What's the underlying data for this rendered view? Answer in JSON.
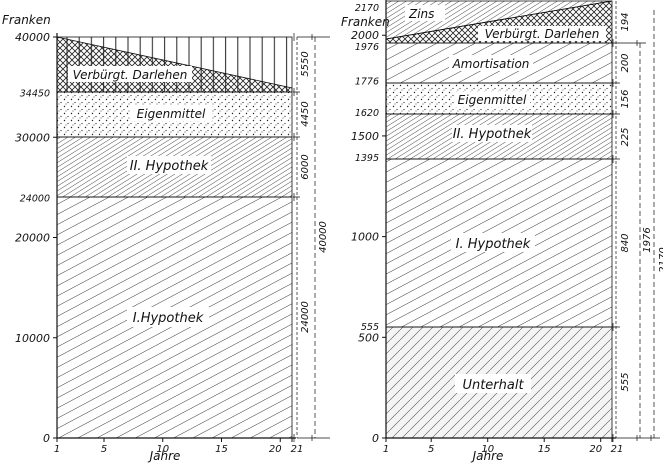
{
  "chart_data": [
    {
      "type": "area",
      "ylabel": "Franken",
      "xlabel": "Jahre",
      "ylim": [
        0,
        40000
      ],
      "xlim": [
        1,
        21
      ],
      "x_ticks": [
        "1",
        "5",
        "10",
        "15",
        "20",
        "21"
      ],
      "y_ticks": [
        "0",
        "10000",
        "20000",
        "30000",
        "40000"
      ],
      "boundary_labels": [
        "34450",
        "24000"
      ],
      "bands": [
        {
          "name": "I. Hypothek",
          "from": 0,
          "to": 24000,
          "amount": "24000"
        },
        {
          "name": "II. Hypothek",
          "from": 24000,
          "to": 30000,
          "amount": "6000"
        },
        {
          "name": "Eigenmittel",
          "from": 30000,
          "to": 34450,
          "amount": "4450"
        },
        {
          "name": "Verbürgt. Darlehen",
          "from": 34450,
          "to": 40000,
          "amount": "5550",
          "remaining": [
            [
              1,
              40000
            ],
            [
              21,
              34600
            ]
          ]
        }
      ],
      "total_label": "40000"
    },
    {
      "type": "area",
      "ylabel": "Franken",
      "xlabel": "Jahre",
      "ylim": [
        0,
        2170
      ],
      "xlim": [
        1,
        21
      ],
      "x_ticks": [
        "1",
        "5",
        "10",
        "15",
        "20",
        "21"
      ],
      "y_ticks": [
        "0",
        "500",
        "1000",
        "1500",
        "2000"
      ],
      "boundary_labels": [
        "2170",
        "1976",
        "1776",
        "1620",
        "1395",
        "555"
      ],
      "bands": [
        {
          "name": "Unterhalt",
          "from": 0,
          "to": 555,
          "amount": "555"
        },
        {
          "name": "I. Hypothek",
          "from": 555,
          "to": 1395,
          "amount": "840"
        },
        {
          "name": "II. Hypothek",
          "from": 1395,
          "to": 1620,
          "amount": "225"
        },
        {
          "name": "Eigenmittel",
          "from": 1620,
          "to": 1776,
          "amount": "156"
        },
        {
          "name": "Amortisation",
          "from": 1776,
          "to": 1976,
          "amount": "200"
        },
        {
          "name": "Verbürgt. Darlehen",
          "from": 1976,
          "amount": "",
          "upper": [
            [
              1,
              1976
            ],
            [
              21,
              1976
            ]
          ]
        },
        {
          "name": "Zins",
          "amount": "194",
          "upper": [
            [
              1,
              2000
            ],
            [
              21,
              2170
            ]
          ]
        }
      ],
      "total_label": "1976",
      "total_label_cut": "2170"
    }
  ],
  "labels": {
    "left": {
      "ylabel": "Franken",
      "xlabel": "Jahre",
      "b1": "I.Hypothek",
      "b2": "II. Hypothek",
      "b3": "Eigenmittel",
      "b4": "Verbürgt. Darlehen",
      "d1": "24000",
      "d2": "6000",
      "d3": "4450",
      "d4": "5550",
      "dt": "40000"
    },
    "right": {
      "ylabel": "Franken",
      "xlabel": "Jahre",
      "b1": "Unterhalt",
      "b2": "I. Hypothek",
      "b3": "II. Hypothek",
      "b4": "Eigenmittel",
      "b5": "Amortisation",
      "b6": "Verbürgt. Darlehen",
      "b7": "Zins",
      "d1": "555",
      "d2": "840",
      "d3": "225",
      "d4": "156",
      "d5": "200",
      "d6": "194",
      "dt": "1976",
      "dt2": "2170"
    }
  }
}
